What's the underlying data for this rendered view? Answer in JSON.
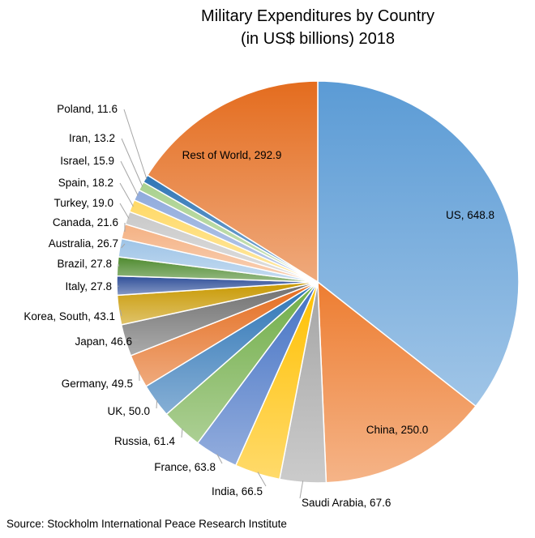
{
  "chart_data": {
    "type": "pie",
    "title": "Military Expenditures by Country",
    "subtitle": "(in US$ billions) 2018",
    "source": "Source: Stockholm International Peace Research Institute",
    "slices": [
      {
        "label": "US, 648.8",
        "name": "US",
        "value": 648.8,
        "color": "#5b9bd5"
      },
      {
        "label": "China, 250.0",
        "name": "China",
        "value": 250.0,
        "color": "#ed7d31"
      },
      {
        "label": "Saudi Arabia, 67.6",
        "name": "Saudi Arabia",
        "value": 67.6,
        "color": "#a5a5a5"
      },
      {
        "label": "India, 66.5",
        "name": "India",
        "value": 66.5,
        "color": "#ffc000"
      },
      {
        "label": "France, 63.8",
        "name": "France",
        "value": 63.8,
        "color": "#4472c4"
      },
      {
        "label": "Russia, 61.4",
        "name": "Russia",
        "value": 61.4,
        "color": "#70ad47"
      },
      {
        "label": "UK, 50.0",
        "name": "UK",
        "value": 50.0,
        "color": "#2e75b6"
      },
      {
        "label": "Germany, 49.5",
        "name": "Germany",
        "value": 49.5,
        "color": "#e46c1e"
      },
      {
        "label": "Japan, 46.6",
        "name": "Japan",
        "value": 46.6,
        "color": "#6f6f6f"
      },
      {
        "label": "Korea, South, 43.1",
        "name": "Korea, South",
        "value": 43.1,
        "color": "#c89800"
      },
      {
        "label": "Italy, 27.8",
        "name": "Italy",
        "value": 27.8,
        "color": "#2f4f99"
      },
      {
        "label": "Brazil, 27.8",
        "name": "Brazil",
        "value": 27.8,
        "color": "#4e8a2e"
      },
      {
        "label": "Australia, 26.7",
        "name": "Australia",
        "value": 26.7,
        "color": "#9dc3e6"
      },
      {
        "label": "Canada, 21.6",
        "name": "Canada",
        "value": 21.6,
        "color": "#f4b183"
      },
      {
        "label": "Turkey, 19.0",
        "name": "Turkey",
        "value": 19.0,
        "color": "#c9c9c9"
      },
      {
        "label": "Spain, 18.2",
        "name": "Spain",
        "value": 18.2,
        "color": "#ffd966"
      },
      {
        "label": "Israel, 15.9",
        "name": "Israel",
        "value": 15.9,
        "color": "#8faadc"
      },
      {
        "label": "Iran, 13.2",
        "name": "Iran",
        "value": 13.2,
        "color": "#a9d18e"
      },
      {
        "label": "Poland, 11.6",
        "name": "Poland",
        "value": 11.6,
        "color": "#2e75b6"
      },
      {
        "label": "Rest of World, 292.9",
        "name": "Rest of World",
        "value": 292.9,
        "color": "#e46c1e"
      }
    ]
  }
}
